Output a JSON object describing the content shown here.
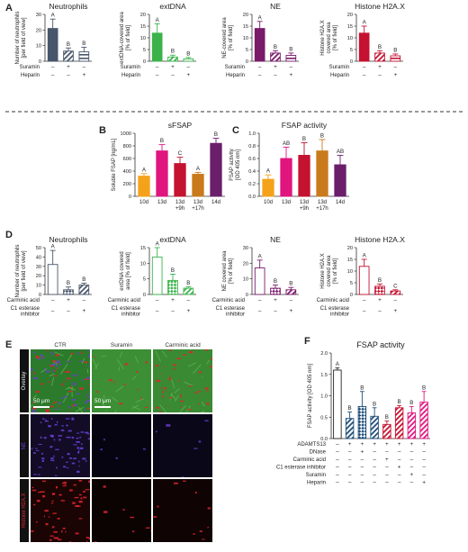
{
  "panels": [
    {
      "letter": "A",
      "letter_pos": "a"
    },
    {
      "letter": "B",
      "letter_pos": "b"
    },
    {
      "letter": "C",
      "letter_pos": "c"
    },
    {
      "letter": "D",
      "letter_pos": "d"
    },
    {
      "letter": "E",
      "letter_pos": "e"
    },
    {
      "letter": "F",
      "letter_pos": "f"
    }
  ],
  "micrographs": {
    "columns": [
      "CTR",
      "Suramin",
      "Carminic acid"
    ],
    "rows": [
      "Overlay",
      "NE",
      "Histone H2A.X"
    ],
    "scale_label": "50 μm",
    "colors": {
      "green": "#2f8a2a",
      "purple": "#6a3fd8",
      "red": "#e0262b"
    }
  },
  "chart_data": [
    {
      "id": "A1",
      "type": "bar",
      "title": "Neutrophils",
      "ylabel": "Number of neutrophils\n[per field of view]",
      "ylim": [
        0,
        30
      ],
      "yticks": [
        0,
        10,
        20,
        30
      ],
      "rows": [
        {
          "label": "Suramin",
          "marks": [
            "–",
            "+",
            "–"
          ]
        },
        {
          "label": "Heparin",
          "marks": [
            "–",
            "–",
            "+"
          ]
        }
      ],
      "values": [
        21,
        6.5,
        6
      ],
      "errors": [
        6,
        2,
        3
      ],
      "letters": [
        "A",
        "B",
        "B"
      ],
      "styles": [
        "solid",
        "hatch",
        "hstripe"
      ],
      "color": "#47566b"
    },
    {
      "id": "A2",
      "type": "bar",
      "title": "extDNA",
      "ylabel": "extDNA-covered area\n[% of field]",
      "ylim": [
        0,
        20
      ],
      "yticks": [
        0,
        5,
        10,
        15,
        20
      ],
      "rows": [
        {
          "label": "Suramin",
          "marks": [
            "–",
            "+",
            "–"
          ]
        },
        {
          "label": "Heparin",
          "marks": [
            "–",
            "–",
            "+"
          ]
        }
      ],
      "values": [
        12,
        1.8,
        1
      ],
      "errors": [
        4,
        0.8,
        0.6
      ],
      "letters": [
        "A",
        "B",
        "B"
      ],
      "styles": [
        "solid",
        "hatch",
        "hstripe"
      ],
      "color": "#3bb34a"
    },
    {
      "id": "A3",
      "type": "bar",
      "title": "NE",
      "ylabel": "NE-covered area\n[% of field]",
      "ylim": [
        0,
        20
      ],
      "yticks": [
        0,
        5,
        10,
        15,
        20
      ],
      "rows": [
        {
          "label": "Suramin",
          "marks": [
            "–",
            "+",
            "–"
          ]
        },
        {
          "label": "Heparin",
          "marks": [
            "–",
            "–",
            "+"
          ]
        }
      ],
      "values": [
        14,
        3.5,
        2.5
      ],
      "errors": [
        3,
        1,
        1
      ],
      "letters": [
        "A",
        "B",
        "B"
      ],
      "styles": [
        "solid",
        "hatch",
        "hstripe"
      ],
      "color": "#7a1a6a"
    },
    {
      "id": "A4",
      "type": "bar",
      "title": "Histone H2A.X",
      "ylabel": "Histone H2A.X\ncovered area\n[% of field]",
      "ylim": [
        0,
        20
      ],
      "yticks": [
        0,
        5,
        10,
        15,
        20
      ],
      "rows": [
        {
          "label": "Suramin",
          "marks": [
            "–",
            "+",
            "–"
          ]
        },
        {
          "label": "Heparin",
          "marks": [
            "–",
            "–",
            "+"
          ]
        }
      ],
      "values": [
        12,
        3.5,
        2.3
      ],
      "errors": [
        3,
        1,
        0.8
      ],
      "letters": [
        "A",
        "B",
        "B"
      ],
      "styles": [
        "solid",
        "hatch",
        "hstripe"
      ],
      "color": "#c41230"
    },
    {
      "id": "B",
      "type": "bar",
      "title": "sFSAP",
      "ylabel": "Soluble FSAP [ng/mL]",
      "ylim": [
        0,
        1000
      ],
      "yticks": [
        0,
        200,
        400,
        600,
        800,
        1000
      ],
      "categories": [
        "10d",
        "13d",
        "13d\n+9h",
        "13d\n+17h",
        "14d"
      ],
      "values": [
        320,
        720,
        520,
        350,
        840
      ],
      "errors": [
        40,
        100,
        100,
        30,
        80
      ],
      "letters": [
        "A",
        "B",
        "C",
        "A",
        "B"
      ],
      "colors": [
        "#f5a21b",
        "#e0157e",
        "#c41230",
        "#c97a1d",
        "#6b1f6b"
      ]
    },
    {
      "id": "C",
      "type": "bar",
      "title": "FSAP activity",
      "ylabel": "FSAP activity\n[OD 405 nm]",
      "ylim": [
        0,
        1.0
      ],
      "yticks": [
        0,
        0.2,
        0.4,
        0.6,
        0.8,
        1.0
      ],
      "categories": [
        "10d",
        "13d",
        "13d\n+9h",
        "13d\n+17h",
        "14d"
      ],
      "values": [
        0.27,
        0.6,
        0.65,
        0.72,
        0.5
      ],
      "errors": [
        0.07,
        0.18,
        0.2,
        0.18,
        0.15
      ],
      "letters": [
        "A",
        "AB",
        "B",
        "B",
        "AB"
      ],
      "colors": [
        "#f5a21b",
        "#e0157e",
        "#c41230",
        "#c97a1d",
        "#6b1f6b"
      ]
    },
    {
      "id": "D1",
      "type": "bar",
      "title": "Neutrophils",
      "ylabel": "Number of neutrophils\n[per field of view]",
      "ylim": [
        0,
        50
      ],
      "yticks": [
        0,
        10,
        20,
        30,
        40,
        50
      ],
      "rows": [
        {
          "label": "Carminic acid",
          "marks": [
            "–",
            "+",
            "–"
          ]
        },
        {
          "label": "C1 esterase\ninhibitor",
          "marks": [
            "–",
            "–",
            "+"
          ]
        }
      ],
      "values": [
        32,
        5,
        10
      ],
      "errors": [
        15,
        3,
        2
      ],
      "letters": [
        "A",
        "B",
        "B"
      ],
      "styles": [
        "open",
        "check",
        "hatch"
      ],
      "color": "#47566b"
    },
    {
      "id": "D2",
      "type": "bar",
      "title": "extDNA",
      "ylabel": "extDNA covered\narea [% of field]",
      "ylim": [
        0,
        15
      ],
      "yticks": [
        0,
        5,
        10,
        15
      ],
      "rows": [
        {
          "label": "Carminic acid",
          "marks": [
            "–",
            "+",
            "–"
          ]
        },
        {
          "label": "C1 esterase\ninhibitor",
          "marks": [
            "–",
            "–",
            "+"
          ]
        }
      ],
      "values": [
        12,
        4.5,
        2
      ],
      "errors": [
        3,
        2,
        0.5
      ],
      "letters": [
        "A",
        "B",
        "B"
      ],
      "styles": [
        "open",
        "check",
        "hatch"
      ],
      "color": "#3bb34a"
    },
    {
      "id": "D3",
      "type": "bar",
      "title": "NE",
      "ylabel": "NE covered area\n[% of field]",
      "ylim": [
        0,
        30
      ],
      "yticks": [
        0,
        10,
        20,
        30
      ],
      "rows": [
        {
          "label": "Carminic acid",
          "marks": [
            "–",
            "+",
            "–"
          ]
        },
        {
          "label": "C1 esterase\ninhibitor",
          "marks": [
            "–",
            "–",
            "+"
          ]
        }
      ],
      "values": [
        17,
        4,
        3
      ],
      "errors": [
        5,
        2,
        1.5
      ],
      "letters": [
        "A",
        "B",
        "B"
      ],
      "styles": [
        "open",
        "check",
        "hatch"
      ],
      "color": "#7a1a6a"
    },
    {
      "id": "D4",
      "type": "bar",
      "title": "Histone H2A.X",
      "ylabel": "Histone H2A.X\ncovered area\n[% of field]",
      "ylim": [
        0,
        20
      ],
      "yticks": [
        0,
        5,
        10,
        15,
        20
      ],
      "rows": [
        {
          "label": "Carminic acid",
          "marks": [
            "–",
            "+",
            "–"
          ]
        },
        {
          "label": "C1 esterase\ninhibitor",
          "marks": [
            "–",
            "–",
            "+"
          ]
        }
      ],
      "values": [
        12,
        3.5,
        1.5
      ],
      "errors": [
        3,
        1,
        0.5
      ],
      "letters": [
        "A",
        "B",
        "C"
      ],
      "styles": [
        "open",
        "check",
        "hatch"
      ],
      "color": "#c41230"
    },
    {
      "id": "F",
      "type": "bar",
      "title": "FSAP activity",
      "ylabel": "FSAP activity [OD 405 nm]",
      "ylim": [
        0,
        2.0
      ],
      "yticks": [
        0,
        0.5,
        1.0,
        1.5,
        2.0
      ],
      "rows": [
        {
          "label": "ADAMTS13",
          "marks": [
            "–",
            "+",
            "+",
            "+",
            "+",
            "+",
            "+",
            "+"
          ]
        },
        {
          "label": "DNase",
          "marks": [
            "–",
            "–",
            "+",
            "–",
            "–",
            "–",
            "–",
            "–"
          ]
        },
        {
          "label": "Carminic acid",
          "marks": [
            "–",
            "–",
            "–",
            "–",
            "+",
            "–",
            "–",
            "–"
          ]
        },
        {
          "label": "C1 esterase inhibitor",
          "marks": [
            "–",
            "–",
            "–",
            "–",
            "–",
            "+",
            "–",
            "–"
          ]
        },
        {
          "label": "Suramin",
          "marks": [
            "–",
            "–",
            "–",
            "–",
            "–",
            "–",
            "+",
            "–"
          ]
        },
        {
          "label": "Heparin",
          "marks": [
            "–",
            "–",
            "–",
            "–",
            "–",
            "–",
            "–",
            "+"
          ]
        }
      ],
      "values": [
        1.6,
        0.47,
        0.75,
        0.52,
        0.33,
        0.72,
        0.6,
        0.85
      ],
      "errors": [
        0.05,
        0.15,
        0.35,
        0.2,
        0.08,
        0.05,
        0.15,
        0.25
      ],
      "letters": [
        "A",
        "B",
        "B",
        "B",
        "B",
        "B",
        "B",
        "B"
      ],
      "styles": [
        "open",
        "hatch",
        "check",
        "hatch",
        "hatch",
        "hatch",
        "hatch",
        "hatch"
      ],
      "colors": [
        "#222222",
        "#1f4e79",
        "#1f4e79",
        "#1f4e79",
        "#c41230",
        "#c41230",
        "#e0157e",
        "#e0157e"
      ]
    }
  ]
}
